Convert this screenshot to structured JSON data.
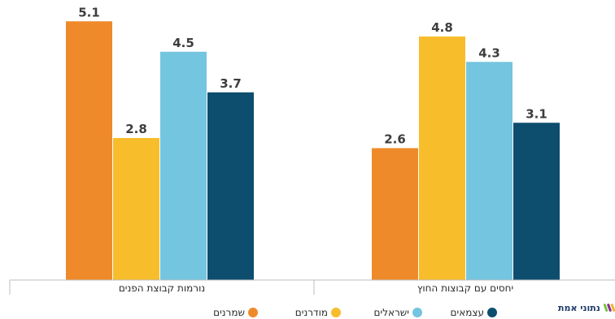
{
  "chart_data": {
    "type": "bar",
    "categories": [
      "נורמות קבוצת הפנים",
      "יחסים עם קבוצות החוץ"
    ],
    "series": [
      {
        "name": "שמרנים",
        "values": [
          5.1,
          2.6
        ]
      },
      {
        "name": "מודרנים",
        "values": [
          2.8,
          4.8
        ]
      },
      {
        "name": "ישראלים",
        "values": [
          4.5,
          4.3
        ]
      },
      {
        "name": "עצמאים",
        "values": [
          3.7,
          3.1
        ]
      }
    ],
    "ylim": [
      0,
      5.4
    ],
    "grid": false,
    "legend_position": "bottom",
    "colors": [
      "#ee8a2a",
      "#f7bd2b",
      "#74c5e0",
      "#0d4d6e"
    ]
  },
  "brand": {
    "logo_text": "נתוני אמת",
    "logo_colors": [
      "#7ac043",
      "#8a2a8c",
      "#f0b62b"
    ]
  }
}
